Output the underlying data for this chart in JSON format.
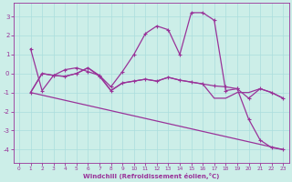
{
  "xlabel": "Windchill (Refroidissement éolien,°C)",
  "xlim": [
    -0.5,
    23.5
  ],
  "ylim": [
    -4.7,
    3.7
  ],
  "yticks": [
    -4,
    -3,
    -2,
    -1,
    0,
    1,
    2,
    3
  ],
  "xticks": [
    0,
    1,
    2,
    3,
    4,
    5,
    6,
    7,
    8,
    9,
    10,
    11,
    12,
    13,
    14,
    15,
    16,
    17,
    18,
    19,
    20,
    21,
    22,
    23
  ],
  "bg_color": "#cceee8",
  "line_color": "#993399",
  "grid_color": "#aadddd",
  "lines": [
    {
      "x": [
        1,
        2,
        3,
        4,
        5,
        6,
        7,
        8,
        9,
        10,
        11,
        12,
        13,
        14,
        15,
        16,
        17,
        18,
        19,
        20,
        21,
        22,
        23
      ],
      "y": [
        1.3,
        -0.9,
        -0.1,
        0.2,
        0.3,
        0.1,
        -0.1,
        -0.7,
        0.1,
        1.0,
        2.1,
        2.5,
        2.3,
        1.0,
        3.2,
        3.2,
        2.8,
        -0.9,
        -0.8,
        -2.4,
        -3.5,
        -3.9,
        -4.0
      ],
      "marker": true
    },
    {
      "x": [
        1,
        2,
        3,
        4,
        5,
        6,
        7,
        8,
        9,
        10,
        11,
        12,
        13,
        14,
        15,
        16,
        17,
        18,
        19,
        20,
        21,
        22,
        23
      ],
      "y": [
        -1.0,
        0.0,
        -0.1,
        -0.15,
        0.0,
        0.3,
        -0.15,
        -0.9,
        -0.5,
        -0.4,
        -0.3,
        -0.4,
        -0.2,
        -0.35,
        -0.45,
        -0.55,
        -0.65,
        -0.7,
        -0.8,
        -1.3,
        -0.8,
        -1.0,
        -1.3
      ],
      "marker": true
    },
    {
      "x": [
        1,
        23
      ],
      "y": [
        -1.0,
        -4.0
      ],
      "marker": false
    },
    {
      "x": [
        1,
        2,
        3,
        4,
        5,
        6,
        7,
        8,
        9,
        10,
        11,
        12,
        13,
        14,
        15,
        16,
        17,
        18,
        19,
        20,
        21,
        22,
        23
      ],
      "y": [
        -1.0,
        0.0,
        -0.1,
        -0.15,
        0.0,
        0.3,
        -0.1,
        -0.9,
        -0.5,
        -0.4,
        -0.3,
        -0.4,
        -0.2,
        -0.35,
        -0.45,
        -0.55,
        -1.3,
        -1.3,
        -1.0,
        -1.0,
        -0.8,
        -1.0,
        -1.3
      ],
      "marker": false
    }
  ]
}
